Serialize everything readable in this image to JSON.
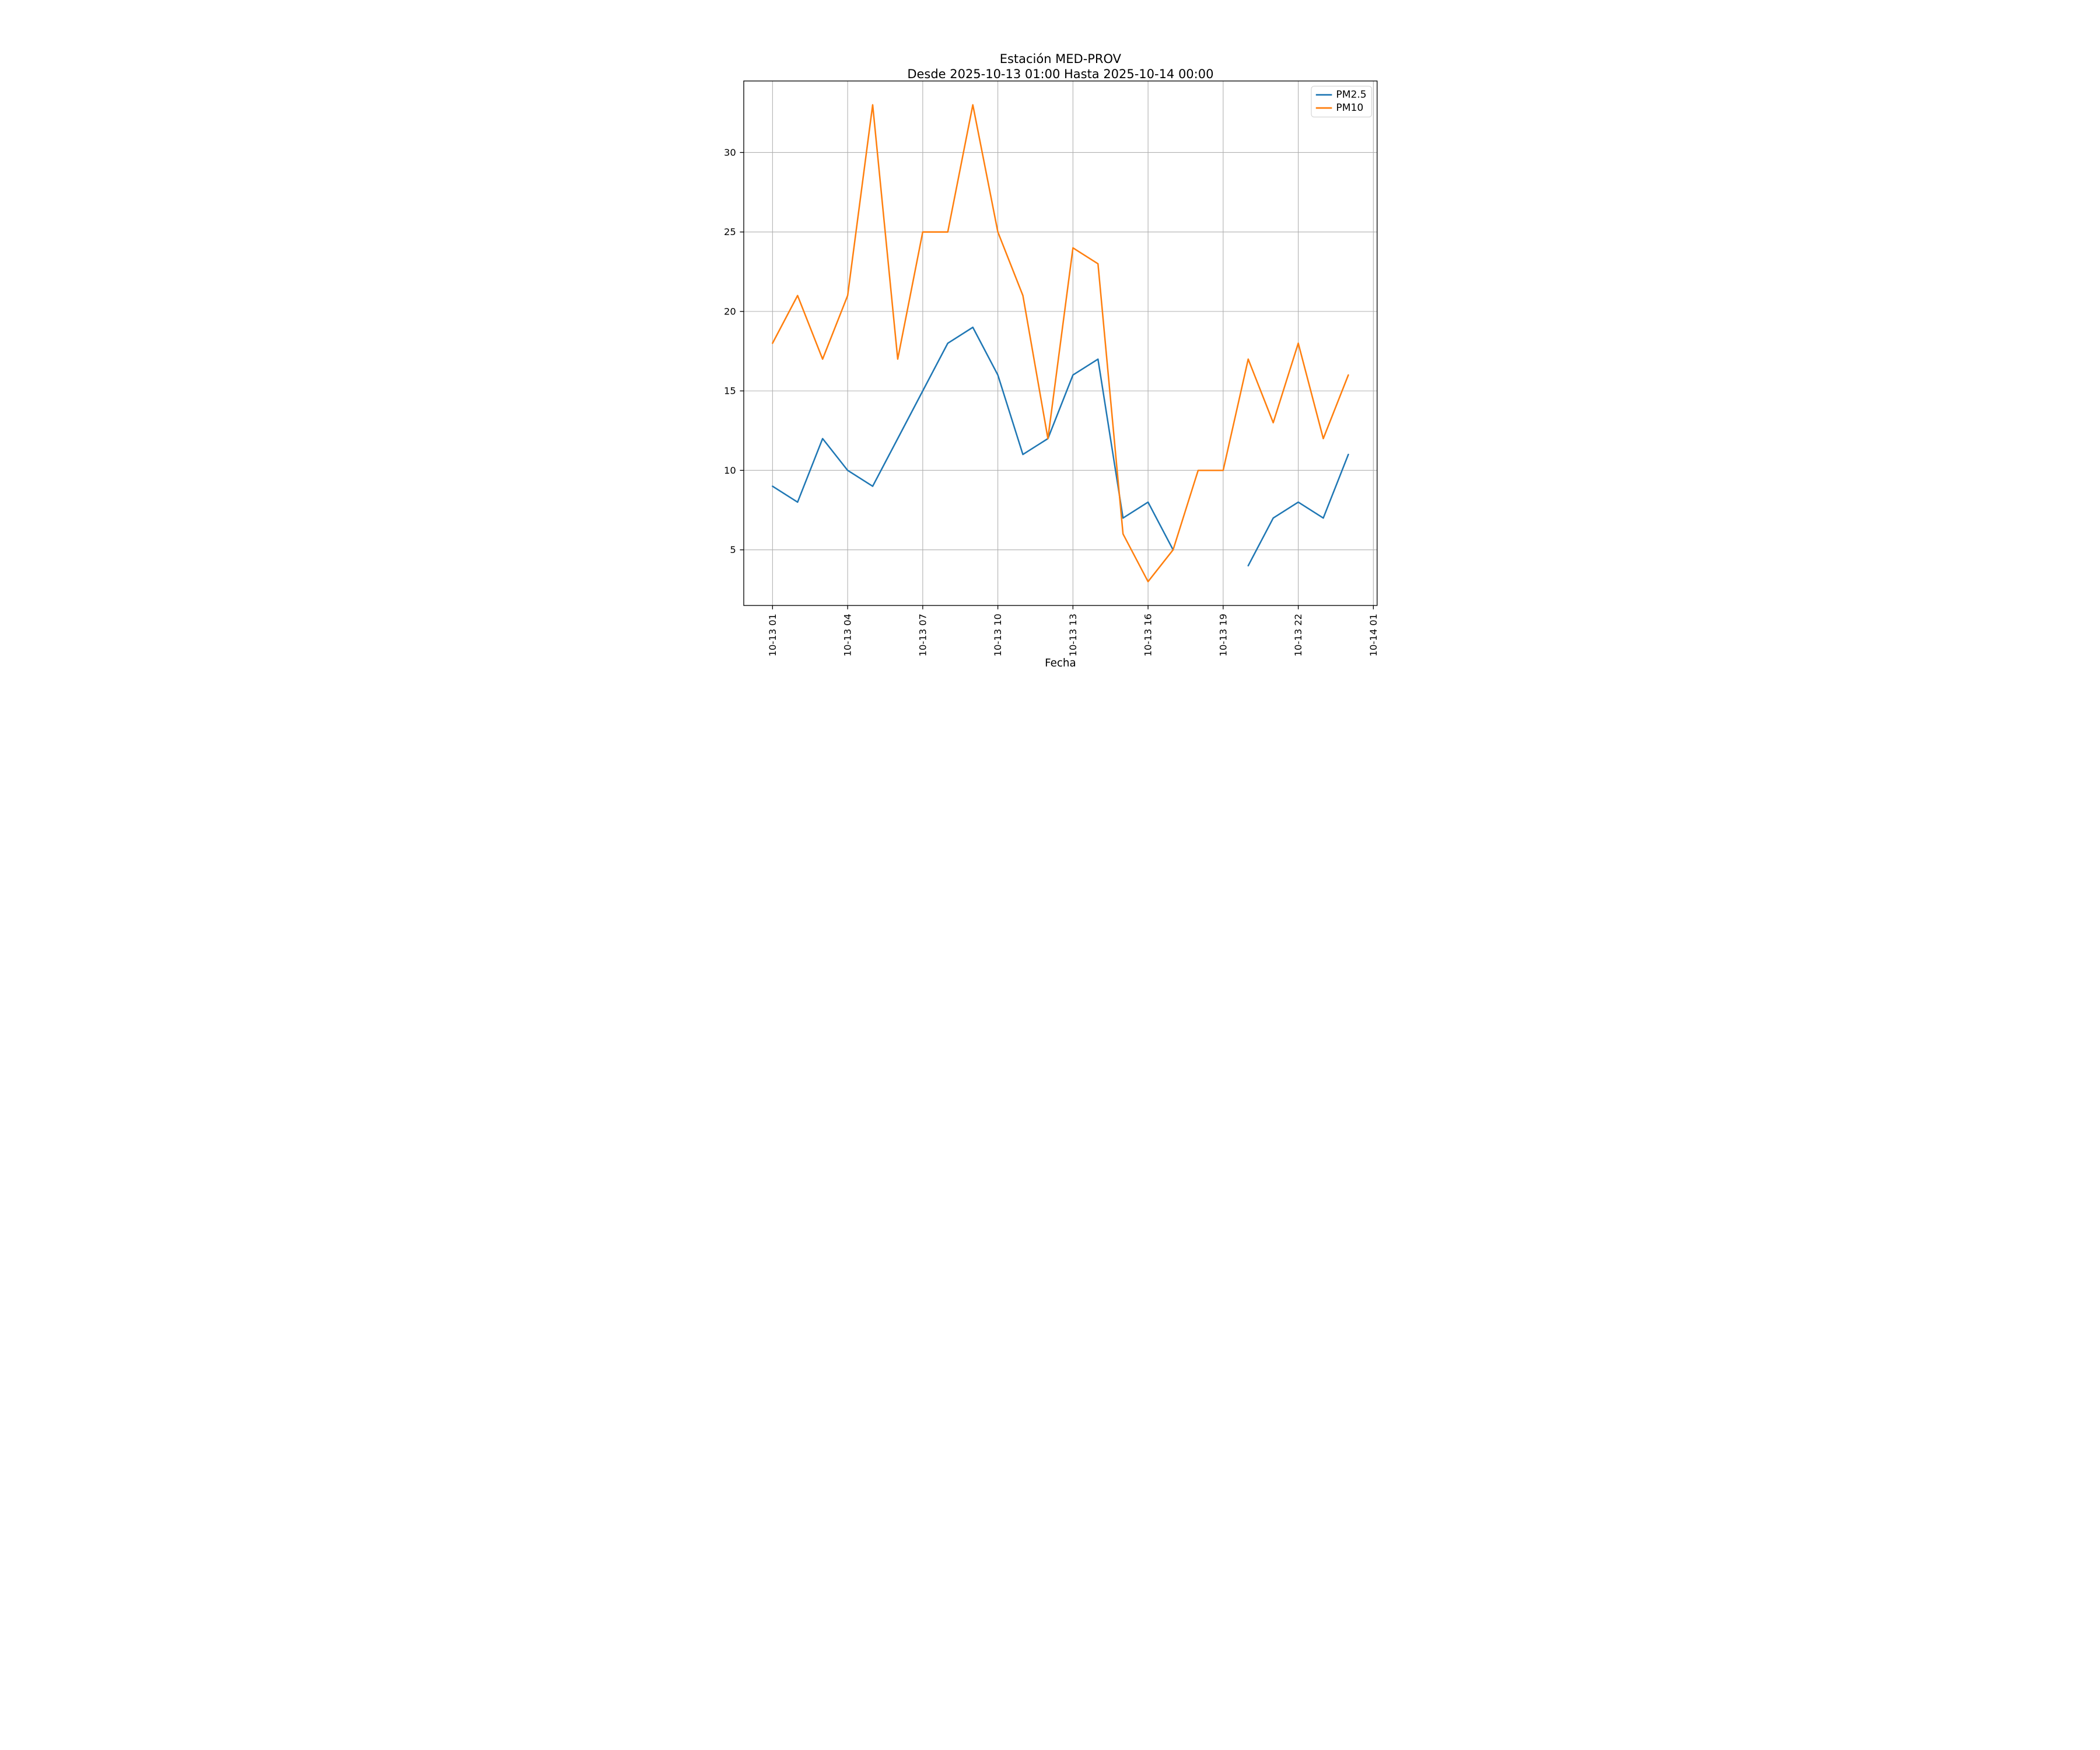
{
  "chart_data": {
    "type": "line",
    "title": "Estación MED-PROV",
    "subtitle": "Desde 2025-10-13 01:00 Hasta 2025-10-14 00:00",
    "xlabel": "Fecha",
    "ylabel": "",
    "grid": true,
    "legend_position": "upper right",
    "xlim": [
      -0.15,
      25.15
    ],
    "ylim": [
      1.5,
      34.5
    ],
    "x_tick_hours": [
      1,
      4,
      7,
      10,
      13,
      16,
      19,
      22,
      25
    ],
    "x_tick_labels": [
      "10-13 01",
      "10-13 04",
      "10-13 07",
      "10-13 10",
      "10-13 13",
      "10-13 16",
      "10-13 19",
      "10-13 22",
      "10-14 01"
    ],
    "y_ticks": [
      5,
      10,
      15,
      20,
      25,
      30
    ],
    "x_hours": [
      1,
      2,
      3,
      4,
      5,
      6,
      7,
      8,
      9,
      10,
      11,
      12,
      13,
      14,
      15,
      16,
      17,
      18,
      19,
      20,
      21,
      22,
      23,
      24
    ],
    "x_labels": [
      "10-13 01",
      "10-13 02",
      "10-13 03",
      "10-13 04",
      "10-13 05",
      "10-13 06",
      "10-13 07",
      "10-13 08",
      "10-13 09",
      "10-13 10",
      "10-13 11",
      "10-13 12",
      "10-13 13",
      "10-13 14",
      "10-13 15",
      "10-13 16",
      "10-13 17",
      "10-13 18",
      "10-13 19",
      "10-13 20",
      "10-13 21",
      "10-13 22",
      "10-13 23",
      "10-14 00"
    ],
    "series": [
      {
        "name": "PM2.5",
        "color": "#1f77b4",
        "values": [
          9,
          8,
          12,
          10,
          9,
          12,
          15,
          18,
          19,
          16,
          11,
          12,
          16,
          17,
          7,
          8,
          5,
          null,
          null,
          4,
          7,
          8,
          7,
          11
        ]
      },
      {
        "name": "PM10",
        "color": "#ff7f0e",
        "values": [
          18,
          21,
          17,
          21,
          33,
          17,
          25,
          25,
          33,
          25,
          21,
          12,
          24,
          23,
          6,
          3,
          5,
          10,
          10,
          17,
          13,
          18,
          12,
          16
        ]
      }
    ],
    "style_colors": {
      "background": "#ffffff",
      "grid": "#b0b0b0",
      "spine": "#000000",
      "tick": "#000000",
      "legend_border": "#cccccc"
    }
  }
}
